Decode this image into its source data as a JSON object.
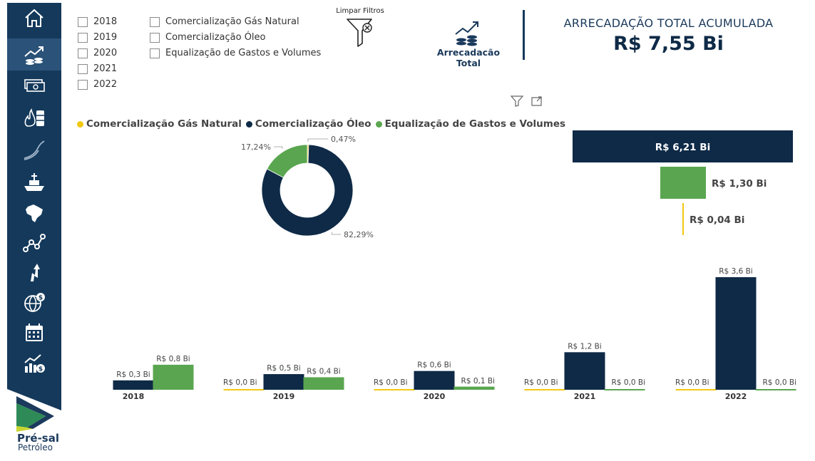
{
  "nav": {
    "items": [
      {
        "icon": "home-icon"
      },
      {
        "icon": "revenue-trend-icon",
        "active": true
      },
      {
        "icon": "money-stack-icon"
      },
      {
        "icon": "gas-oil-barrel-icon"
      },
      {
        "icon": "curve-chart-icon"
      },
      {
        "icon": "ship-platform-icon"
      },
      {
        "icon": "brazil-map-icon"
      },
      {
        "icon": "network-graph-icon"
      },
      {
        "icon": "arrow-up-icon"
      },
      {
        "icon": "globe-dollar-icon"
      },
      {
        "icon": "calendar-icon"
      },
      {
        "icon": "chart-dollar-icon"
      }
    ]
  },
  "logo": {
    "line1": "Pré-sal",
    "line2": "Petróleo"
  },
  "filters": {
    "years": [
      "2018",
      "2019",
      "2020",
      "2021",
      "2022"
    ],
    "categories": [
      "Comercialização Gás Natural",
      "Comercialização Óleo",
      "Equalização de Gastos e Volumes"
    ]
  },
  "clear_filters_label": "Limpar Filtros",
  "total_button_label": "Arrecadacão Total",
  "kpi": {
    "title": "ARRECADAÇÃO TOTAL ACUMULADA",
    "value": "R$ 7,55 Bi"
  },
  "colors": {
    "gas": "#f2c811",
    "oleo": "#0e2a47",
    "equalizacao": "#5aa650",
    "sidebar": "#14395b"
  },
  "legend": [
    {
      "name": "Comercialização Gás Natural",
      "color": "#f2c811"
    },
    {
      "name": "Comercialização Óleo",
      "color": "#0e2a47"
    },
    {
      "name": "Equalização de Gastos e Volumes",
      "color": "#5aa650"
    }
  ],
  "chart_data": [
    {
      "type": "pie",
      "categories": [
        "Comercialização Gás Natural",
        "Comercialização Óleo",
        "Equalização de Gastos e Volumes"
      ],
      "values": [
        0.47,
        82.29,
        17.24
      ],
      "labels": [
        "0,47%",
        "82,29%",
        "17,24%"
      ],
      "colors": [
        "#f2c811",
        "#0e2a47",
        "#5aa650"
      ]
    },
    {
      "type": "bar",
      "categories": [
        "Comercialização Óleo",
        "Equalização de Gastos e Volumes",
        "Comercialização Gás Natural"
      ],
      "values": [
        6.21,
        1.3,
        0.04
      ],
      "labels": [
        "R$ 6,21 Bi",
        "R$ 1,30 Bi",
        "R$ 0,04 Bi"
      ],
      "colors": [
        "#0e2a47",
        "#5aa650",
        "#f2c811"
      ]
    },
    {
      "type": "bar",
      "categories": [
        "2018",
        "2019",
        "2020",
        "2021",
        "2022"
      ],
      "series": [
        {
          "name": "Comercialização Gás Natural",
          "color": "#f2c811",
          "values": [
            null,
            0.0,
            0.0,
            0.0,
            0.0
          ],
          "labels": [
            "",
            "R$ 0,0 Bi",
            "R$ 0,0 Bi",
            "R$ 0,0 Bi",
            "R$ 0,0 Bi"
          ]
        },
        {
          "name": "Comercialização Óleo",
          "color": "#0e2a47",
          "values": [
            0.3,
            0.5,
            0.6,
            1.2,
            3.6
          ],
          "labels": [
            "R$ 0,3 Bi",
            "R$ 0,5 Bi",
            "R$ 0,6 Bi",
            "R$ 1,2 Bi",
            "R$ 3,6 Bi"
          ]
        },
        {
          "name": "Equalização de Gastos e Volumes",
          "color": "#5aa650",
          "values": [
            0.8,
            0.4,
            0.1,
            0.0,
            0.0
          ],
          "labels": [
            "R$ 0,8 Bi",
            "R$ 0,4 Bi",
            "R$ 0,1 Bi",
            "R$ 0,0 Bi",
            "R$ 0,0 Bi"
          ]
        }
      ]
    }
  ]
}
